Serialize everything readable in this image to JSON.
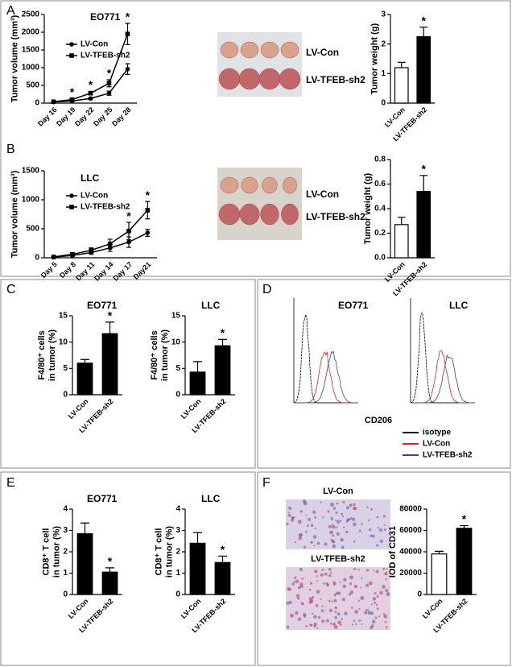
{
  "panels": [
    "A",
    "B",
    "C",
    "D",
    "E",
    "F"
  ],
  "photos": [
    {
      "labels": [
        "LV-Con",
        "LV-TFEB-sh2"
      ]
    },
    {
      "labels": [
        "LV-Con",
        "LV-TFEB-sh2"
      ]
    }
  ],
  "staining": {
    "labels": [
      "LV-Con",
      "LV-TFEB-sh2"
    ]
  },
  "flow": {
    "titles": [
      "EO771",
      "LLC"
    ],
    "x_label": "CD206",
    "legend": [
      {
        "name": "isotype",
        "color": "#000000"
      },
      {
        "name": "LV-Con",
        "color": "#e0201c"
      },
      {
        "name": "LV-TFEB-sh2",
        "color": "#3a3fa0"
      }
    ]
  },
  "chart_data": [
    {
      "type": "line",
      "title": "EO771",
      "y_label": [
        "Tumor volume (mm³)"
      ],
      "categories": [
        "Day 16",
        "Day 19",
        "Day 22",
        "Day 25",
        "Day 28"
      ],
      "series": [
        {
          "name": "LV-Con",
          "color": "#000000",
          "marker": "circle",
          "values": [
            30,
            60,
            130,
            280,
            960
          ],
          "errors": [
            10,
            20,
            30,
            60,
            150
          ]
        },
        {
          "name": "LV-TFEB-sh2",
          "color": "#000000",
          "marker": "square",
          "values": [
            40,
            100,
            280,
            560,
            1950
          ],
          "errors": [
            10,
            25,
            50,
            100,
            300
          ]
        }
      ],
      "sig_labels": [
        null,
        "*",
        "*",
        "*",
        "*"
      ],
      "ylim": [
        0,
        2500
      ],
      "yticks": [
        0,
        500,
        1000,
        1500,
        2000,
        2500
      ]
    },
    {
      "type": "bar",
      "y_label": [
        "Tumor weight (g)"
      ],
      "categories": [
        "LV-Con",
        "LV-TFEB-sh2"
      ],
      "values": [
        1.2,
        2.25
      ],
      "errors": [
        0.18,
        0.32
      ],
      "colors": [
        "#ffffff",
        "#000000"
      ],
      "sig_labels": [
        null,
        "*"
      ],
      "ylim": [
        0,
        3
      ],
      "yticks": [
        0,
        1,
        2,
        3
      ]
    },
    {
      "type": "line",
      "title": "LLC",
      "y_label": [
        "Tumor volume (mm³)"
      ],
      "categories": [
        "Day 5",
        "Day 8",
        "Day 11",
        "Day 14",
        "Day 17",
        "Day21"
      ],
      "series": [
        {
          "name": "LV-Con",
          "color": "#000000",
          "marker": "circle",
          "values": [
            10,
            40,
            90,
            170,
            270,
            430
          ],
          "errors": [
            5,
            15,
            30,
            60,
            90,
            60
          ]
        },
        {
          "name": "LV-TFEB-sh2",
          "color": "#000000",
          "marker": "square",
          "values": [
            15,
            60,
            130,
            240,
            460,
            820
          ],
          "errors": [
            5,
            20,
            40,
            80,
            150,
            150
          ]
        }
      ],
      "sig_labels": [
        null,
        null,
        null,
        null,
        "*",
        "*"
      ],
      "ylim": [
        0,
        1500
      ],
      "yticks": [
        0,
        500,
        1000,
        1500
      ]
    },
    {
      "type": "bar",
      "y_label": [
        "Tumor weight (g)"
      ],
      "categories": [
        "LV-Con",
        "LV-TFEB-sh2"
      ],
      "values": [
        0.27,
        0.54
      ],
      "errors": [
        0.06,
        0.13
      ],
      "colors": [
        "#ffffff",
        "#000000"
      ],
      "sig_labels": [
        null,
        "*"
      ],
      "ylim": [
        0,
        0.8
      ],
      "yticks": [
        {
          "value": 0,
          "label": "0.0"
        },
        0.2,
        0.4,
        0.6,
        0.8
      ]
    },
    {
      "type": "bar",
      "title": "EO771",
      "y_label": [
        "F4/80⁺ cells",
        "in tumor (%)"
      ],
      "categories": [
        "LV-Con",
        "LV-TFEB-sh2"
      ],
      "values": [
        6,
        11.6
      ],
      "errors": [
        0.7,
        2.2
      ],
      "colors": [
        "#000000",
        "#000000"
      ],
      "sig_labels": [
        null,
        "*"
      ],
      "ylim": [
        0,
        15
      ],
      "yticks": [
        0,
        5,
        10,
        15
      ]
    },
    {
      "type": "bar",
      "title": "LLC",
      "y_label": [
        "F4/80⁺ cells",
        "in tumor (%)"
      ],
      "categories": [
        "LV-Con",
        "LV-TFEB-sh2"
      ],
      "values": [
        4.3,
        9.3
      ],
      "errors": [
        2,
        1.2
      ],
      "colors": [
        "#000000",
        "#000000"
      ],
      "sig_labels": [
        null,
        "*"
      ],
      "ylim": [
        0,
        15
      ],
      "yticks": [
        0,
        5,
        10,
        15
      ]
    },
    {
      "type": "bar",
      "title": "EO771",
      "y_label": [
        "CD8⁺ T cell",
        "in tumor (%)"
      ],
      "categories": [
        "LV-Con",
        "LV-TFEB-sh2"
      ],
      "values": [
        2.85,
        1.05
      ],
      "errors": [
        0.5,
        0.2
      ],
      "colors": [
        "#000000",
        "#000000"
      ],
      "sig_labels": [
        null,
        "*"
      ],
      "ylim": [
        0,
        4
      ],
      "yticks": [
        0,
        1,
        2,
        3,
        4
      ]
    },
    {
      "type": "bar",
      "title": "LLC",
      "y_label": [
        "CD8⁺ T cell",
        "in tumor (%)"
      ],
      "categories": [
        "LV-Con",
        "LV-TFEB-sh2"
      ],
      "values": [
        2.4,
        1.5
      ],
      "errors": [
        0.5,
        0.3
      ],
      "colors": [
        "#000000",
        "#000000"
      ],
      "sig_labels": [
        null,
        "*"
      ],
      "ylim": [
        0,
        4
      ],
      "yticks": [
        0,
        1,
        2,
        3,
        4
      ]
    },
    {
      "type": "bar",
      "y_label": [
        "IOD of CD31"
      ],
      "categories": [
        "LV-Con",
        "LV-TFEB-sh2"
      ],
      "values": [
        38000,
        62000
      ],
      "errors": [
        2500,
        2500
      ],
      "colors": [
        "#ffffff",
        "#000000"
      ],
      "sig_labels": [
        null,
        "*"
      ],
      "ylim": [
        0,
        80000
      ],
      "yticks": [
        0,
        20000,
        40000,
        60000,
        80000
      ]
    }
  ]
}
